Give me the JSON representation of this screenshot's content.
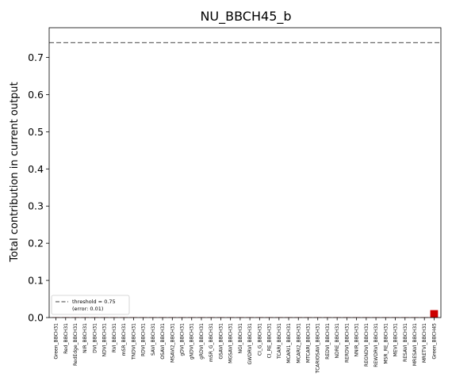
{
  "chart_data": {
    "type": "bar",
    "title": "NU_BBCH45_b",
    "xlabel": "",
    "ylabel": "Total contribution in current output",
    "ylim": [
      0,
      0.78
    ],
    "yticks": [
      0.0,
      0.1,
      0.2,
      0.3,
      0.4,
      0.5,
      0.6,
      0.7
    ],
    "ytick_labels": [
      "0.0",
      "0.1",
      "0.2",
      "0.3",
      "0.4",
      "0.5",
      "0.6",
      "0.7"
    ],
    "threshold": {
      "value": 0.74,
      "label": "threshold = 0.75",
      "sublabel": "(error: 0.01)",
      "color": "#808080"
    },
    "legend_position": "lower-left",
    "bar_color": "#cc0000",
    "categories": [
      "Green_BBCH31",
      "Red_BBCH31",
      "RedEdge_BBCH31",
      "NIR_BBCH31",
      "DVI_BBCH31",
      "NDVI_BBCH31",
      "RVI_BBCH31",
      "mSR_BBCH31",
      "TNDVI_BBCH31",
      "RDVI_BBCH31",
      "SAVI_BBCH31",
      "OSAVI_BBCH31",
      "MSAVI2_BBCH31",
      "gDVI_BBCH31",
      "gNDVI_BBCH31",
      "gRDVI_BBCH31",
      "mSR_G_BBCH31",
      "GSAVI_BBCH31",
      "MGSAVI_BBCH31",
      "NGI_BBCH31",
      "GWDRVI_BBCH31",
      "CI_G_BBCH31",
      "CI_RE_BBCH31",
      "TCARI_BBCH31",
      "MCARI1_BBCH31",
      "MCARI2_BBCH31",
      "MTCARI_BBCH31",
      "TCARIOSAVI_BBCH31",
      "REDVI_BBCH31",
      "NDRE_BBCH31",
      "RERDVI_BBCH31",
      "NNIR_BBCH31",
      "REGNDVI_BBCH31",
      "REWDRVI_BBCH31",
      "MSR_RE_BBCH31",
      "MEVI_BBCH31",
      "RESAVI_BBCH31",
      "MRESAVI_BBCH31",
      "MRETVI_BBCH31",
      "Green_BBCH45"
    ],
    "values": [
      0.001,
      0.001,
      0.001,
      0.001,
      0.001,
      0.001,
      0.001,
      0.001,
      0.001,
      0.001,
      0.001,
      0.001,
      0.001,
      0.001,
      0.001,
      0.001,
      0.001,
      0.001,
      0.001,
      0.001,
      0.001,
      0.001,
      0.001,
      0.001,
      0.001,
      0.001,
      0.001,
      0.001,
      0.001,
      0.001,
      0.001,
      0.001,
      0.001,
      0.001,
      0.001,
      0.001,
      0.001,
      0.001,
      0.001,
      0.02
    ]
  }
}
